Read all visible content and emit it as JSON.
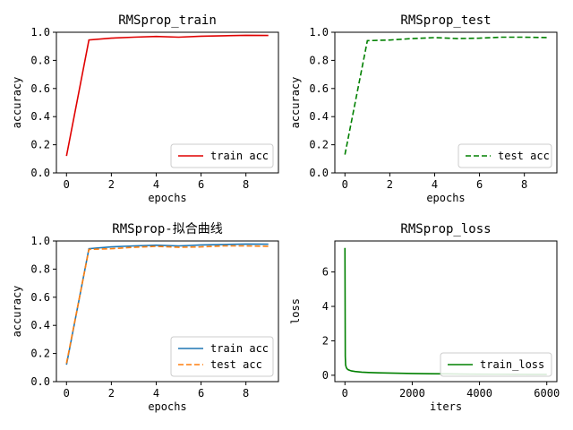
{
  "chart_data": [
    {
      "type": "line",
      "title": "RMSprop_train",
      "xlabel": "epochs",
      "ylabel": "accuracy",
      "xlim": [
        -0.45,
        9.45
      ],
      "ylim": [
        0,
        1.0
      ],
      "xticks": [
        "0",
        "2",
        "4",
        "6",
        "8"
      ],
      "yticks": [
        "0.0",
        "0.2",
        "0.4",
        "0.6",
        "0.8",
        "1.0"
      ],
      "legend_position": "lower-right",
      "series": [
        {
          "name": "train acc",
          "color": "#e00000",
          "dash": "solid",
          "x": [
            0,
            1,
            2,
            3,
            4,
            5,
            6,
            7,
            8,
            9
          ],
          "y": [
            0.12,
            0.945,
            0.958,
            0.965,
            0.97,
            0.965,
            0.972,
            0.975,
            0.978,
            0.977
          ]
        }
      ]
    },
    {
      "type": "line",
      "title": "RMSprop_test",
      "xlabel": "epochs",
      "ylabel": "accuracy",
      "xlim": [
        -0.45,
        9.45
      ],
      "ylim": [
        0,
        1.0
      ],
      "xticks": [
        "0",
        "2",
        "4",
        "6",
        "8"
      ],
      "yticks": [
        "0.0",
        "0.2",
        "0.4",
        "0.6",
        "0.8",
        "1.0"
      ],
      "legend_position": "lower-right",
      "series": [
        {
          "name": "test acc",
          "color": "#008000",
          "dash": "dashed",
          "x": [
            0,
            1,
            2,
            3,
            4,
            5,
            6,
            7,
            8,
            9
          ],
          "y": [
            0.13,
            0.94,
            0.945,
            0.955,
            0.962,
            0.955,
            0.958,
            0.965,
            0.965,
            0.962
          ]
        }
      ]
    },
    {
      "type": "line",
      "title": "RMSprop-拟合曲线",
      "xlabel": "epochs",
      "ylabel": "accuracy",
      "xlim": [
        -0.45,
        9.45
      ],
      "ylim": [
        0,
        1.0
      ],
      "xticks": [
        "0",
        "2",
        "4",
        "6",
        "8"
      ],
      "yticks": [
        "0.0",
        "0.2",
        "0.4",
        "0.6",
        "0.8",
        "1.0"
      ],
      "legend_position": "lower-right",
      "series": [
        {
          "name": "train acc",
          "color": "#1f77b4",
          "dash": "solid",
          "x": [
            0,
            1,
            2,
            3,
            4,
            5,
            6,
            7,
            8,
            9
          ],
          "y": [
            0.12,
            0.945,
            0.958,
            0.965,
            0.97,
            0.965,
            0.972,
            0.975,
            0.978,
            0.977
          ]
        },
        {
          "name": "test acc",
          "color": "#ff7f0e",
          "dash": "dashed",
          "x": [
            0,
            1,
            2,
            3,
            4,
            5,
            6,
            7,
            8,
            9
          ],
          "y": [
            0.13,
            0.94,
            0.945,
            0.955,
            0.962,
            0.955,
            0.958,
            0.965,
            0.965,
            0.962
          ]
        }
      ]
    },
    {
      "type": "line",
      "title": "RMSprop_loss",
      "xlabel": "iters",
      "ylabel": "loss",
      "xlim": [
        -300,
        6300
      ],
      "ylim": [
        -0.37,
        7.8
      ],
      "xticks": [
        "0",
        "2000",
        "4000",
        "6000"
      ],
      "xtick_values": [
        0,
        2000,
        4000,
        6000
      ],
      "yticks": [
        "0",
        "2",
        "4",
        "6"
      ],
      "ytick_values": [
        0,
        2,
        4,
        6
      ],
      "legend_position": "lower-right",
      "series": [
        {
          "name": "train_loss",
          "color": "#008000",
          "dash": "solid",
          "x": [
            0,
            10,
            20,
            40,
            60,
            100,
            150,
            200,
            300,
            400,
            500,
            700,
            1000,
            1500,
            2000,
            2500,
            3000,
            3500,
            4000,
            4500,
            5000,
            5500,
            6000
          ],
          "y": [
            7.4,
            1.1,
            0.6,
            0.45,
            0.38,
            0.32,
            0.28,
            0.25,
            0.22,
            0.2,
            0.18,
            0.16,
            0.14,
            0.12,
            0.1,
            0.09,
            0.08,
            0.07,
            0.065,
            0.06,
            0.055,
            0.05,
            0.05
          ]
        }
      ]
    }
  ]
}
